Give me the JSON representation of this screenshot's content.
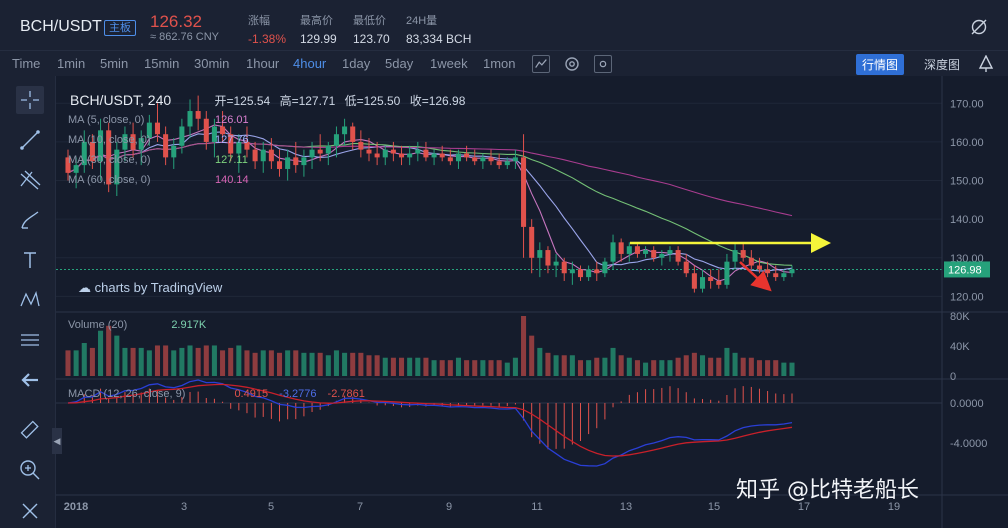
{
  "header": {
    "pair": "BCH/USDT",
    "board": "主板",
    "price": "126.32",
    "cny": "≈ 862.76 CNY",
    "stats": [
      {
        "label": "涨幅",
        "value": "-1.38%"
      },
      {
        "label": "最高价",
        "value": "129.99"
      },
      {
        "label": "最低价",
        "value": "123.70"
      },
      {
        "label": "24H量",
        "value": "83,334 BCH"
      }
    ]
  },
  "toolbar": {
    "timeframes": [
      "Time",
      "1min",
      "5min",
      "15min",
      "30min",
      "1hour",
      "4hour",
      "1day",
      "5day",
      "1week",
      "1mon"
    ],
    "active": "4hour",
    "view_buttons": [
      "行情图",
      "深度图"
    ]
  },
  "tools": [
    "crosshair-icon",
    "trendline-icon",
    "pitchfork-icon",
    "brush-icon",
    "text-icon",
    "pattern-icon",
    "measure-icon",
    "back-arrow-icon",
    "ruler-icon",
    "zoom-icon",
    "magnet-icon"
  ],
  "legend": {
    "symbol": "BCH/USDT, 240",
    "open": "开=125.54",
    "high": "高=127.71",
    "low": "低=125.50",
    "close": "收=126.98",
    "ma": [
      {
        "label": "MA (5, close, 0)",
        "value": "126.01",
        "color": "#d97fcf"
      },
      {
        "label": "MA (10, close, 0)",
        "value": "127.76",
        "color": "#a8b4ff"
      },
      {
        "label": "MA (30, close, 0)",
        "value": "127.11",
        "color": "#7ed37e"
      },
      {
        "label": "MA (60, close, 0)",
        "value": "140.14",
        "color": "#d565b5"
      }
    ],
    "volume": "Volume (20)",
    "volume_value": "2.917K",
    "macd": "MACD (12, 26, close, 9)",
    "macd_values": [
      "0.4915",
      "-3.2776",
      "-2.7861"
    ],
    "tv": "charts by TradingView"
  },
  "watermark": "知乎 @比特老船长",
  "chart_data": {
    "type": "candlestick",
    "price_axis": {
      "min": 117,
      "max": 175,
      "ticks": [
        120,
        130,
        140,
        150,
        160,
        170
      ]
    },
    "last_price": "126.98",
    "volume_axis": {
      "ticks": [
        "80K",
        "40K",
        "0"
      ]
    },
    "macd_axis": {
      "ticks": [
        "0.0000",
        "-4.0000"
      ]
    },
    "x_labels": [
      "2018",
      "3",
      "5",
      "7",
      "9",
      "11",
      "13",
      "15",
      "17",
      "19"
    ],
    "candles": [
      [
        156,
        158,
        150,
        152
      ],
      [
        152,
        156,
        148,
        154
      ],
      [
        154,
        163,
        152,
        160
      ],
      [
        160,
        162,
        153,
        155
      ],
      [
        155,
        166,
        150,
        163
      ],
      [
        163,
        165,
        147,
        149
      ],
      [
        149,
        160,
        146,
        158
      ],
      [
        158,
        164,
        155,
        162
      ],
      [
        162,
        165,
        156,
        158
      ],
      [
        158,
        163,
        154,
        161
      ],
      [
        161,
        167,
        159,
        165
      ],
      [
        165,
        170,
        160,
        162
      ],
      [
        162,
        164,
        154,
        156
      ],
      [
        156,
        161,
        153,
        159
      ],
      [
        159,
        166,
        157,
        164
      ],
      [
        164,
        171,
        161,
        168
      ],
      [
        168,
        172,
        163,
        166
      ],
      [
        166,
        168,
        158,
        160
      ],
      [
        160,
        166,
        156,
        164
      ],
      [
        164,
        168,
        160,
        162
      ],
      [
        162,
        164,
        155,
        157
      ],
      [
        157,
        162,
        152,
        160
      ],
      [
        160,
        164,
        156,
        158
      ],
      [
        158,
        160,
        153,
        155
      ],
      [
        155,
        160,
        152,
        158
      ],
      [
        158,
        161,
        153,
        155
      ],
      [
        155,
        158,
        151,
        153
      ],
      [
        153,
        158,
        150,
        156
      ],
      [
        156,
        160,
        152,
        154
      ],
      [
        154,
        158,
        151,
        156
      ],
      [
        156,
        160,
        153,
        158
      ],
      [
        158,
        162,
        155,
        157
      ],
      [
        157,
        160,
        154,
        159
      ],
      [
        159,
        164,
        156,
        162
      ],
      [
        162,
        166,
        159,
        164
      ],
      [
        164,
        165,
        158,
        160
      ],
      [
        160,
        163,
        156,
        158
      ],
      [
        158,
        161,
        155,
        157
      ],
      [
        157,
        160,
        154,
        156
      ],
      [
        156,
        159,
        154,
        158
      ],
      [
        158,
        160,
        155,
        157
      ],
      [
        157,
        159,
        154,
        156
      ],
      [
        156,
        159,
        154,
        157
      ],
      [
        157,
        160,
        155,
        158
      ],
      [
        158,
        160,
        155,
        156
      ],
      [
        156,
        158,
        154,
        157
      ],
      [
        157,
        159,
        155,
        156
      ],
      [
        156,
        158,
        154,
        155
      ],
      [
        155,
        158,
        153,
        157
      ],
      [
        157,
        159,
        155,
        156
      ],
      [
        156,
        158,
        154,
        155
      ],
      [
        155,
        157,
        153,
        156
      ],
      [
        156,
        158,
        154,
        155
      ],
      [
        155,
        157,
        153,
        154
      ],
      [
        154,
        156,
        153,
        155
      ],
      [
        155,
        158,
        153,
        156
      ],
      [
        156,
        162,
        130,
        138
      ],
      [
        138,
        140,
        126,
        130
      ],
      [
        130,
        134,
        125,
        132
      ],
      [
        132,
        133,
        126,
        128
      ],
      [
        128,
        131,
        125,
        129
      ],
      [
        129,
        130,
        124,
        126
      ],
      [
        126,
        129,
        123,
        127
      ],
      [
        127,
        128,
        124,
        125
      ],
      [
        125,
        128,
        124,
        127
      ],
      [
        127,
        129,
        124,
        126
      ],
      [
        126,
        130,
        125,
        129
      ],
      [
        129,
        136,
        127,
        134
      ],
      [
        134,
        135,
        129,
        131
      ],
      [
        131,
        134,
        129,
        133
      ],
      [
        133,
        134,
        130,
        131
      ],
      [
        131,
        133,
        130,
        132
      ],
      [
        132,
        133,
        129,
        130
      ],
      [
        130,
        132,
        128,
        131
      ],
      [
        131,
        133,
        129,
        132
      ],
      [
        132,
        133,
        128,
        129
      ],
      [
        129,
        131,
        125,
        126
      ],
      [
        126,
        128,
        121,
        122
      ],
      [
        122,
        127,
        121,
        125
      ],
      [
        125,
        127,
        122,
        124
      ],
      [
        124,
        127,
        122,
        123
      ],
      [
        123,
        131,
        122,
        129
      ],
      [
        129,
        134,
        127,
        132
      ],
      [
        132,
        134,
        129,
        130
      ],
      [
        130,
        132,
        127,
        128
      ],
      [
        128,
        130,
        126,
        127
      ],
      [
        127,
        129,
        125,
        126
      ],
      [
        126,
        128,
        124,
        125
      ],
      [
        125,
        127,
        124,
        126
      ],
      [
        126,
        128,
        125,
        127
      ]
    ],
    "annotations": {
      "horizontal_arrow": "yellow",
      "down_arrow": "red"
    }
  }
}
